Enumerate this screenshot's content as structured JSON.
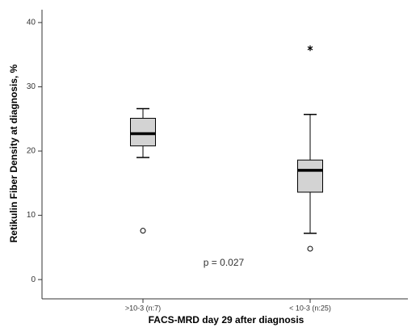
{
  "chart_data": {
    "type": "box",
    "y_label": "Retikulin Fiber Density at diagnosis, %",
    "x_label": "FACS-MRD day 29 after diagnosis",
    "annotation": "p = 0.027",
    "categories": [
      ">10-3 (n:7)",
      "< 10-3 (n:25)"
    ],
    "boxes": [
      {
        "whisker_low": 19.0,
        "q1": 20.8,
        "median": 22.7,
        "q3": 25.1,
        "whisker_high": 26.6,
        "outliers": [
          7.6
        ],
        "extremes": []
      },
      {
        "whisker_low": 7.2,
        "q1": 13.6,
        "median": 17.0,
        "q3": 18.6,
        "whisker_high": 25.7,
        "outliers": [
          4.8
        ],
        "extremes": [
          36
        ]
      }
    ],
    "color": "#d3d3d3",
    "ylim": [
      -3,
      42
    ],
    "yticks": [
      0,
      10,
      20,
      30,
      40
    ]
  }
}
